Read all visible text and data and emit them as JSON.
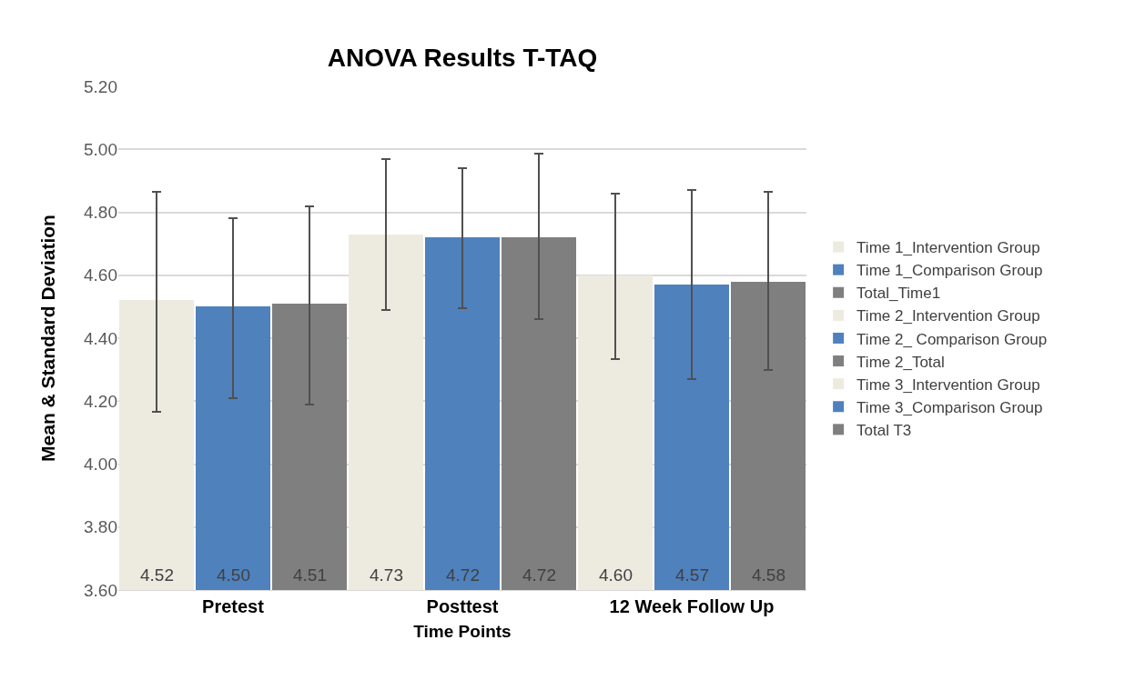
{
  "chart_data": {
    "type": "bar",
    "title": "ANOVA Results T-TAQ",
    "xlabel": "Time Points",
    "ylabel": "Mean & Standard Deviation",
    "categories": [
      "Pretest",
      "Posttest",
      "12 Week Follow Up"
    ],
    "series": [
      {
        "name": "Time 1_Intervention Group",
        "color": "#edebe0",
        "values": [
          4.52,
          null,
          null
        ],
        "value_labels": [
          "4.52",
          null,
          null
        ],
        "errors": [
          [
            4.165,
            4.865
          ],
          null,
          null
        ]
      },
      {
        "name": "Time 1_Comparison Group",
        "color": "#4f81bd",
        "values": [
          4.5,
          null,
          null
        ],
        "value_labels": [
          "4.50",
          null,
          null
        ],
        "errors": [
          [
            4.21,
            4.78
          ],
          null,
          null
        ]
      },
      {
        "name": "Total_Time1",
        "color": "#7f7f7f",
        "values": [
          4.51,
          null,
          null
        ],
        "value_labels": [
          "4.51",
          null,
          null
        ],
        "errors": [
          [
            4.19,
            4.82
          ],
          null,
          null
        ]
      },
      {
        "name": "Time 2_Intervention Group",
        "color": "#edebe0",
        "values": [
          null,
          4.73,
          null
        ],
        "value_labels": [
          null,
          "4.73",
          null
        ],
        "errors": [
          null,
          [
            4.49,
            4.97
          ],
          null
        ]
      },
      {
        "name": "Time 2_ Comparison Group",
        "color": "#4f81bd",
        "values": [
          null,
          4.72,
          null
        ],
        "value_labels": [
          null,
          "4.72",
          null
        ],
        "errors": [
          null,
          [
            4.495,
            4.94
          ],
          null
        ]
      },
      {
        "name": "Time 2_Total",
        "color": "#7f7f7f",
        "values": [
          null,
          4.72,
          null
        ],
        "value_labels": [
          null,
          "4.72",
          null
        ],
        "errors": [
          null,
          [
            4.46,
            4.985
          ],
          null
        ]
      },
      {
        "name": "Time 3_Intervention Group",
        "color": "#edebe0",
        "values": [
          null,
          null,
          4.6
        ],
        "value_labels": [
          null,
          null,
          "4.60"
        ],
        "errors": [
          null,
          null,
          [
            4.335,
            4.86
          ]
        ]
      },
      {
        "name": "Time 3_Comparison Group",
        "color": "#4f81bd",
        "values": [
          null,
          null,
          4.57
        ],
        "value_labels": [
          null,
          null,
          "4.57"
        ],
        "errors": [
          null,
          null,
          [
            4.27,
            4.87
          ]
        ]
      },
      {
        "name": "Total T3",
        "color": "#7f7f7f",
        "values": [
          null,
          null,
          4.58
        ],
        "value_labels": [
          null,
          null,
          "4.58"
        ],
        "errors": [
          null,
          null,
          [
            4.3,
            4.865
          ]
        ]
      }
    ],
    "ylim": [
      3.6,
      5.2
    ],
    "yticks": [
      {
        "value": 3.6,
        "label": "3.60"
      },
      {
        "value": 3.8,
        "label": "3.80"
      },
      {
        "value": 4.0,
        "label": "4.00"
      },
      {
        "value": 4.2,
        "label": "4.20"
      },
      {
        "value": 4.4,
        "label": "4.40"
      },
      {
        "value": 4.6,
        "label": "4.60"
      },
      {
        "value": 4.8,
        "label": "4.80"
      },
      {
        "value": 5.0,
        "label": "5.00"
      },
      {
        "value": 5.2,
        "label": "5.20"
      }
    ],
    "grid": "y",
    "legend": "right"
  }
}
